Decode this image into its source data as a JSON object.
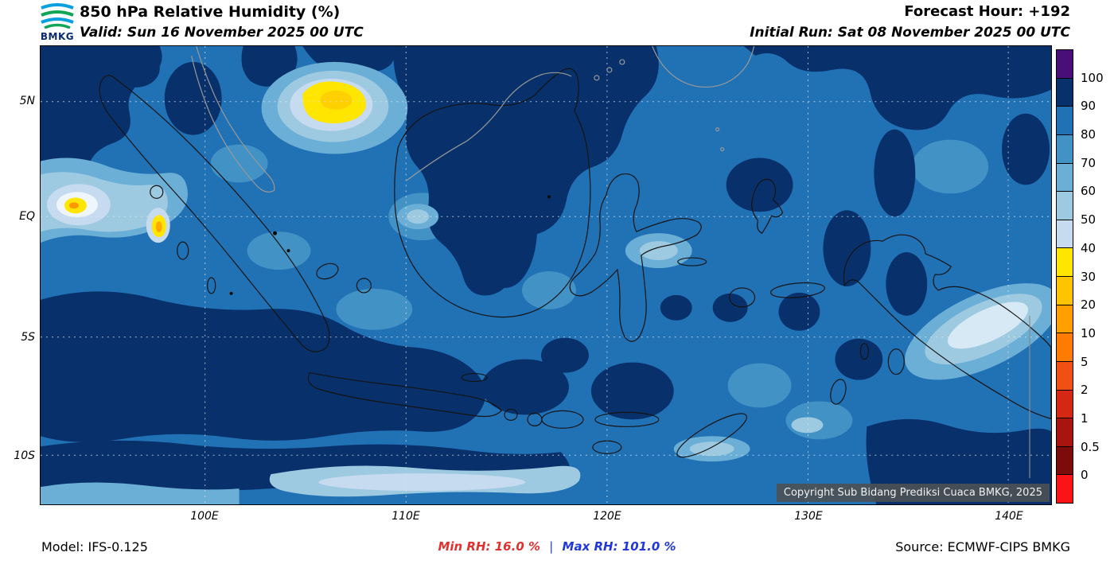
{
  "header": {
    "logo_text": "BMKG",
    "title": "850 hPa Relative Humidity (%)",
    "forecast_hour": "Forecast Hour: +192",
    "valid": "Valid: Sun 16 November 2025 00 UTC",
    "initial_run": "Initial Run: Sat 08 November 2025 00 UTC"
  },
  "map": {
    "y_ticks": [
      "5N",
      "EQ",
      "5S",
      "10S"
    ],
    "x_ticks": [
      "100E",
      "110E",
      "120E",
      "130E",
      "140E"
    ],
    "copyright": "Copyright Sub Bidang Prediksi Cuaca BMKG, 2025"
  },
  "colorbar": {
    "levels": [
      "100",
      "90",
      "80",
      "70",
      "60",
      "50",
      "40",
      "30",
      "20",
      "10",
      "5",
      "2",
      "1",
      "0.5",
      "0"
    ],
    "colors": [
      "#4a0e78",
      "#08306b",
      "#2171b5",
      "#4292c6",
      "#6baed6",
      "#9ecae1",
      "#c6dbef",
      "#ffe600",
      "#ffc400",
      "#ffa000",
      "#ff7c00",
      "#f05014",
      "#d42814",
      "#a81410",
      "#7c0c0c",
      "#fa1418"
    ]
  },
  "footer": {
    "model": "Model: IFS-0.125",
    "min_rh_label": "Min RH:",
    "min_rh_value": "16.0 %",
    "separator": "|",
    "max_rh_label": "Max RH:",
    "max_rh_value": "101.0 %",
    "source": "Source: ECMWF-CIPS BMKG"
  }
}
